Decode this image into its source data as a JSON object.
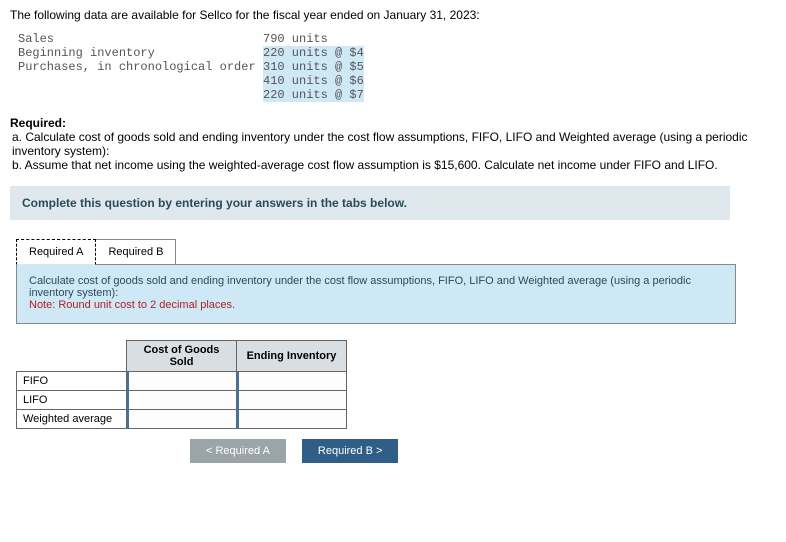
{
  "intro": "The following data are available for Sellco for the fiscal year ended on January 31, 2023:",
  "data": {
    "rows": [
      {
        "label": "Sales",
        "value": "790 units",
        "hl": false
      },
      {
        "label": "Beginning inventory",
        "value": "220 units @ $4",
        "hl": true
      },
      {
        "label": "Purchases, in chronological order",
        "value": "310 units @ $5",
        "hl": true
      },
      {
        "label": "",
        "value": "410 units @ $6",
        "hl": true
      },
      {
        "label": "",
        "value": "220 units @ $7",
        "hl": true
      }
    ]
  },
  "required": {
    "heading": "Required:",
    "a": "a. Calculate cost of goods sold and ending inventory under the cost flow assumptions, FIFO, LIFO and Weighted average (using a periodic inventory system):",
    "b": "b. Assume that net income using the weighted-average cost flow assumption is $15,600. Calculate net income under FIFO and LIFO."
  },
  "instruction": "Complete this question by entering your answers in the tabs below.",
  "tabs": {
    "a": "Required A",
    "b": "Required B"
  },
  "panel": {
    "text": "Calculate cost of goods sold and ending inventory under the cost flow assumptions, FIFO, LIFO and Weighted average (using a periodic inventory system):",
    "note": "Note: Round unit cost to 2 decimal places."
  },
  "table": {
    "col1": "Cost of Goods Sold",
    "col2": "Ending Inventory",
    "rows": [
      "FIFO",
      "LIFO",
      "Weighted average"
    ]
  },
  "nav": {
    "prev": "<  Required A",
    "next": "Required B  >"
  }
}
